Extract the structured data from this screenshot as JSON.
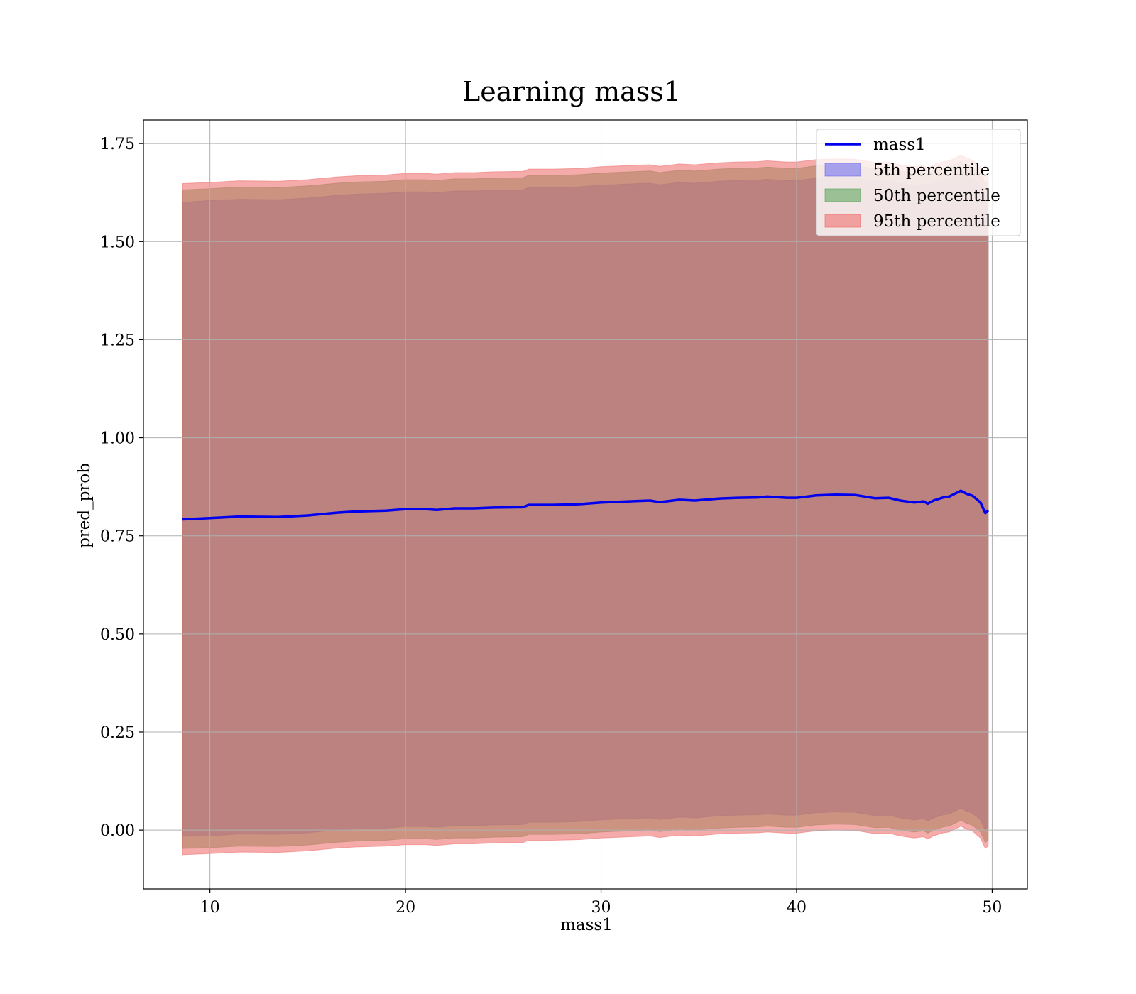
{
  "chart_data": {
    "type": "line",
    "title": "Learning mass1",
    "xlabel": "mass1",
    "ylabel": "pred_prob",
    "xlim": [
      6.6,
      51.8
    ],
    "ylim": [
      -0.15,
      1.81
    ],
    "xticks": [
      10,
      20,
      30,
      40,
      50
    ],
    "yticks": [
      0.0,
      0.25,
      0.5,
      0.75,
      1.0,
      1.25,
      1.5,
      1.75
    ],
    "ytick_labels": [
      "0.00",
      "0.25",
      "0.50",
      "0.75",
      "1.00",
      "1.25",
      "1.50",
      "1.75"
    ],
    "grid": true,
    "legend_position": "top-right",
    "x": [
      8.6,
      10,
      11.5,
      13.5,
      15,
      16.5,
      17.5,
      19,
      20,
      21,
      21.6,
      22.5,
      23.5,
      24.5,
      26,
      26.3,
      27.5,
      28.5,
      29,
      30,
      31,
      32,
      32.5,
      33,
      34,
      34.8,
      36,
      37,
      38,
      38.5,
      39.5,
      40,
      41,
      42,
      43,
      44,
      44.7,
      45.3,
      46,
      46.5,
      46.7,
      47,
      47.5,
      47.8,
      48.4,
      48.7,
      49.0,
      49.4,
      49.65,
      49.8
    ],
    "series": [
      {
        "name": "mass1",
        "color": "#0000ee",
        "y": [
          0.792,
          0.795,
          0.799,
          0.798,
          0.802,
          0.809,
          0.812,
          0.814,
          0.818,
          0.818,
          0.816,
          0.82,
          0.82,
          0.822,
          0.823,
          0.829,
          0.829,
          0.83,
          0.831,
          0.835,
          0.837,
          0.839,
          0.84,
          0.836,
          0.842,
          0.84,
          0.845,
          0.847,
          0.848,
          0.85,
          0.847,
          0.847,
          0.853,
          0.855,
          0.854,
          0.846,
          0.847,
          0.84,
          0.835,
          0.838,
          0.832,
          0.84,
          0.848,
          0.85,
          0.865,
          0.857,
          0.852,
          0.835,
          0.808,
          0.815
        ]
      }
    ],
    "bands": [
      {
        "name": "5th percentile",
        "color": "#6666ee",
        "upper": [
          1.6,
          1.605,
          1.608,
          1.607,
          1.611,
          1.618,
          1.621,
          1.623,
          1.627,
          1.627,
          1.625,
          1.629,
          1.629,
          1.631,
          1.632,
          1.638,
          1.638,
          1.639,
          1.64,
          1.644,
          1.646,
          1.648,
          1.649,
          1.645,
          1.651,
          1.649,
          1.654,
          1.656,
          1.657,
          1.659,
          1.656,
          1.656,
          1.662,
          1.664,
          1.663,
          1.655,
          1.656,
          1.649,
          1.644,
          1.647,
          1.641,
          1.649,
          1.657,
          1.659,
          1.674,
          1.666,
          1.661,
          1.644,
          1.617,
          1.624
        ],
        "lower": [
          -0.016,
          -0.015,
          -0.01,
          -0.011,
          -0.007,
          0.0,
          0.003,
          0.005,
          0.009,
          0.009,
          0.007,
          0.011,
          0.011,
          0.013,
          0.014,
          0.02,
          0.02,
          0.021,
          0.022,
          0.026,
          0.028,
          0.03,
          0.031,
          0.027,
          0.033,
          0.031,
          0.036,
          0.038,
          0.039,
          0.041,
          0.038,
          0.038,
          0.044,
          0.046,
          0.045,
          0.037,
          0.038,
          0.031,
          0.026,
          0.029,
          0.023,
          0.031,
          0.039,
          0.041,
          0.056,
          0.048,
          0.043,
          0.026,
          -0.001,
          0.006
        ]
      },
      {
        "name": "50th percentile",
        "color": "#55a055",
        "upper": [
          1.632,
          1.635,
          1.639,
          1.638,
          1.642,
          1.649,
          1.652,
          1.654,
          1.658,
          1.658,
          1.656,
          1.66,
          1.66,
          1.662,
          1.663,
          1.669,
          1.669,
          1.67,
          1.671,
          1.675,
          1.677,
          1.679,
          1.68,
          1.676,
          1.682,
          1.68,
          1.685,
          1.687,
          1.688,
          1.69,
          1.687,
          1.687,
          1.693,
          1.695,
          1.694,
          1.686,
          1.687,
          1.68,
          1.675,
          1.678,
          1.672,
          1.68,
          1.688,
          1.69,
          1.705,
          1.697,
          1.692,
          1.675,
          1.648,
          1.655
        ],
        "lower": [
          -0.047,
          -0.045,
          -0.041,
          -0.042,
          -0.038,
          -0.031,
          -0.028,
          -0.026,
          -0.022,
          -0.022,
          -0.024,
          -0.02,
          -0.02,
          -0.018,
          -0.017,
          -0.011,
          -0.011,
          -0.01,
          -0.009,
          -0.005,
          -0.003,
          -0.001,
          0.0,
          -0.004,
          0.002,
          0.0,
          0.005,
          0.007,
          0.008,
          0.01,
          0.007,
          0.007,
          0.013,
          0.015,
          0.014,
          0.006,
          0.007,
          0.0,
          -0.005,
          -0.002,
          -0.008,
          0.0,
          0.008,
          0.01,
          0.025,
          0.017,
          0.012,
          -0.005,
          -0.032,
          -0.025
        ]
      },
      {
        "name": "95th percentile",
        "color": "#ee6666",
        "upper": [
          1.648,
          1.651,
          1.655,
          1.654,
          1.658,
          1.665,
          1.668,
          1.67,
          1.674,
          1.674,
          1.672,
          1.676,
          1.676,
          1.678,
          1.679,
          1.685,
          1.685,
          1.686,
          1.687,
          1.691,
          1.693,
          1.695,
          1.696,
          1.692,
          1.698,
          1.696,
          1.701,
          1.703,
          1.704,
          1.706,
          1.703,
          1.703,
          1.709,
          1.711,
          1.71,
          1.702,
          1.703,
          1.696,
          1.691,
          1.694,
          1.688,
          1.696,
          1.704,
          1.706,
          1.721,
          1.713,
          1.708,
          1.691,
          1.664,
          1.671
        ],
        "lower": [
          -0.063,
          -0.06,
          -0.056,
          -0.057,
          -0.053,
          -0.046,
          -0.043,
          -0.041,
          -0.037,
          -0.037,
          -0.039,
          -0.035,
          -0.035,
          -0.033,
          -0.032,
          -0.026,
          -0.026,
          -0.025,
          -0.024,
          -0.02,
          -0.018,
          -0.016,
          -0.015,
          -0.019,
          -0.013,
          -0.015,
          -0.01,
          -0.008,
          -0.007,
          -0.005,
          -0.008,
          -0.008,
          -0.002,
          0.0,
          -0.001,
          -0.009,
          -0.008,
          -0.015,
          -0.02,
          -0.017,
          -0.023,
          -0.015,
          -0.007,
          -0.005,
          0.01,
          0.002,
          -0.003,
          -0.02,
          -0.047,
          -0.04
        ]
      }
    ]
  }
}
